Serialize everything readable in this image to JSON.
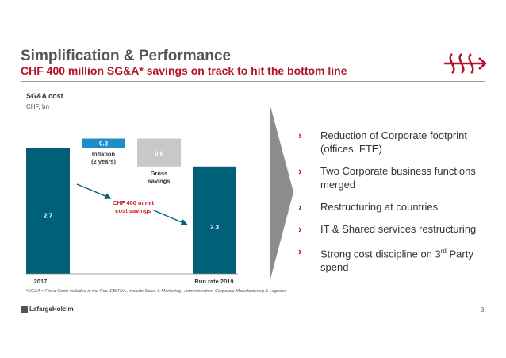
{
  "header": {
    "title": "Simplification & Performance",
    "subtitle": "CHF 400 million SG&A* savings on track to hit the bottom line"
  },
  "chart_data": {
    "type": "waterfall",
    "title": "SG&A cost",
    "unit": "CHF, bn",
    "bars": [
      {
        "category": "2017",
        "value": 2.7,
        "base": 0,
        "label": "2.7",
        "color": "#00607a",
        "axis_label": "2017"
      },
      {
        "category": "Inflation (2 years)",
        "value": 0.2,
        "base": 2.7,
        "label": "0.2",
        "color": "#1e8fc6",
        "note": [
          "Inflation",
          "(2 years)"
        ]
      },
      {
        "category": "Gross savings",
        "value": -0.6,
        "base": 2.9,
        "label": "0.6",
        "color": "#c8c8c8",
        "note": [
          "Gross",
          "savings"
        ]
      },
      {
        "category": "Run rate 2019",
        "value": 2.3,
        "base": 0,
        "label": "2.3",
        "color": "#00607a",
        "axis_label": "Run rate 2019"
      }
    ],
    "ylim": [
      0,
      3.3
    ],
    "annotation": [
      "CHF 400 m net",
      "cost savings"
    ],
    "colors": {
      "annotation": "#d11a2a",
      "arrow": "#00607a"
    }
  },
  "bullets": [
    {
      "text": "Reduction of Corporate footprint (offices, FTE)"
    },
    {
      "text": "Two Corporate business functions merged"
    },
    {
      "text": "Restructuring at countries"
    },
    {
      "text": "IT & Shared services restructuring"
    },
    {
      "text_before": "Strong cost discipline on 3",
      "sup": "rd",
      "text_after": " Party spend"
    }
  ],
  "bullet_marker": "›",
  "footnote": "*SG&A = Fixed Costs included in the Rec. EBITDA , include Sales & Marketing , Administration, Corporate Manufacturing  & Logistics",
  "footer": {
    "brand": "LafargeHolcim",
    "page_number": "3"
  },
  "colors": {
    "accent": "#b3122a",
    "bar_dark": "#00607a",
    "bar_light": "#1e8fc6",
    "savings_grey": "#c8c8c8",
    "chevron": "#8c8c8c"
  }
}
